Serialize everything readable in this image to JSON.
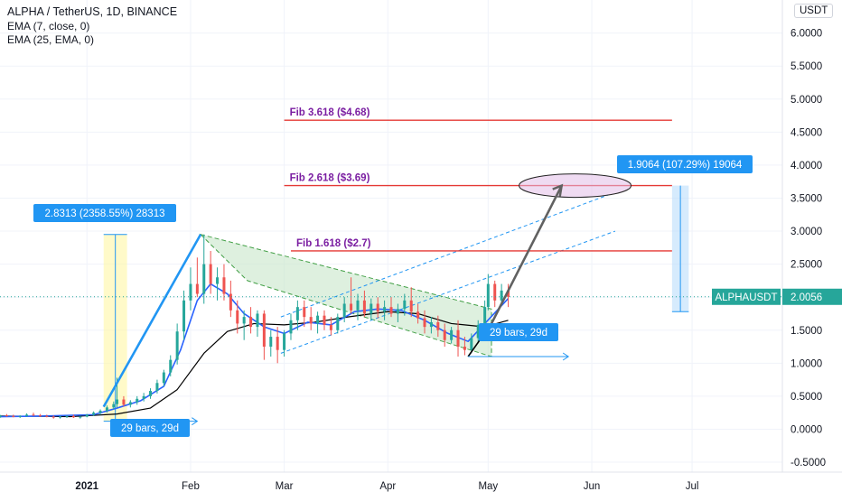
{
  "header": {
    "symbol_title": "ALPHA / TetherUS, 1D, BINANCE",
    "indicators": [
      "EMA (7, close, 0)",
      "EMA (25, EMA, 0)"
    ],
    "currency_badge": "USDT"
  },
  "colors": {
    "up": "#26a69a",
    "down": "#ef5350",
    "ema_fast": "#2962ff",
    "ema_slow": "#000000",
    "fib_line": "#e53935",
    "fib_text": "#7b1fa2",
    "label_blue": "#2196f3",
    "price_badge": "#26a69a",
    "channel_fill": "#c8e6c9",
    "projection": "#616161"
  },
  "chart_data": {
    "type": "candlestick",
    "title": "ALPHA / TetherUS, 1D, BINANCE",
    "y_ticks": [
      -0.5,
      0,
      0.5,
      1.0,
      1.5,
      2.0,
      2.5,
      3.0,
      3.5,
      4.0,
      4.5,
      5.0,
      5.5,
      6.0
    ],
    "y_tick_labels": [
      "-0.5000",
      "0.0000",
      "0.5000",
      "1.0000",
      "1.5000",
      "2.0000",
      "2.5000",
      "3.0000",
      "3.5000",
      "4.0000",
      "4.5000",
      "5.0000",
      "5.5000",
      "6.0000"
    ],
    "ylim": [
      -0.65,
      6.2
    ],
    "x_ticks": [
      "2021-01-01",
      "2021-02-01",
      "2021-03-01",
      "2021-04-01",
      "2021-05-01",
      "2021-06-01",
      "2021-07-01"
    ],
    "x_tick_labels": [
      "2021",
      "Feb",
      "Mar",
      "Apr",
      "May",
      "Jun",
      "Jul"
    ],
    "xlim": [
      "2020-12-06",
      "2021-07-28"
    ],
    "last_price": {
      "symbol": "ALPHAUSDT",
      "value": "2.0056",
      "y": 2.0056
    },
    "fib_levels": [
      {
        "label": "Fib 1.618 ($2.7)",
        "y": 2.7,
        "start": "2021-03-03",
        "end": "2021-06-25"
      },
      {
        "label": "Fib 2.618 ($3.69)",
        "y": 3.69,
        "start": "2021-03-01",
        "end": "2021-06-25"
      },
      {
        "label": "Fib 3.618 ($4.68)",
        "y": 4.68,
        "start": "2021-03-01",
        "end": "2021-06-25"
      }
    ],
    "measure_labels": [
      {
        "text": "2.8313 (2358.55%) 28313"
      },
      {
        "text": "1.9064 (107.29%) 19064"
      },
      {
        "text": "29 bars, 29d"
      },
      {
        "text": "29 bars, 29d"
      }
    ],
    "anchors": {
      "start_low_date": "2021-01-06",
      "start_low": 0.12,
      "peak_date": "2021-02-04",
      "peak": 2.95,
      "target_date": "2021-05-23",
      "target": 3.69,
      "first_base_date": "2021-04-25",
      "first_base": 1.1,
      "first_top_date": "2021-05-02",
      "first_top": 1.6
    },
    "candles": [
      {
        "date": "2020-12-06",
        "open": 0.18,
        "high": 0.22,
        "low": 0.17,
        "close": 0.21
      },
      {
        "date": "2020-12-08",
        "open": 0.21,
        "high": 0.23,
        "low": 0.19,
        "close": 0.2
      },
      {
        "date": "2020-12-10",
        "open": 0.2,
        "high": 0.22,
        "low": 0.18,
        "close": 0.19
      },
      {
        "date": "2020-12-12",
        "open": 0.19,
        "high": 0.21,
        "low": 0.17,
        "close": 0.2
      },
      {
        "date": "2020-12-14",
        "open": 0.2,
        "high": 0.24,
        "low": 0.19,
        "close": 0.22
      },
      {
        "date": "2020-12-16",
        "open": 0.22,
        "high": 0.25,
        "low": 0.2,
        "close": 0.21
      },
      {
        "date": "2020-12-18",
        "open": 0.21,
        "high": 0.23,
        "low": 0.19,
        "close": 0.2
      },
      {
        "date": "2020-12-20",
        "open": 0.2,
        "high": 0.22,
        "low": 0.18,
        "close": 0.19
      },
      {
        "date": "2020-12-22",
        "open": 0.19,
        "high": 0.21,
        "low": 0.16,
        "close": 0.18
      },
      {
        "date": "2020-12-24",
        "open": 0.18,
        "high": 0.2,
        "low": 0.16,
        "close": 0.19
      },
      {
        "date": "2020-12-26",
        "open": 0.19,
        "high": 0.21,
        "low": 0.17,
        "close": 0.2
      },
      {
        "date": "2020-12-28",
        "open": 0.2,
        "high": 0.22,
        "low": 0.17,
        "close": 0.18
      },
      {
        "date": "2020-12-30",
        "open": 0.18,
        "high": 0.2,
        "low": 0.16,
        "close": 0.19
      },
      {
        "date": "2021-01-01",
        "open": 0.19,
        "high": 0.23,
        "low": 0.18,
        "close": 0.22
      },
      {
        "date": "2021-01-03",
        "open": 0.22,
        "high": 0.27,
        "low": 0.2,
        "close": 0.25
      },
      {
        "date": "2021-01-05",
        "open": 0.25,
        "high": 0.3,
        "low": 0.22,
        "close": 0.28
      },
      {
        "date": "2021-01-07",
        "open": 0.28,
        "high": 0.36,
        "low": 0.25,
        "close": 0.33
      },
      {
        "date": "2021-01-09",
        "open": 0.33,
        "high": 0.42,
        "low": 0.3,
        "close": 0.38
      },
      {
        "date": "2021-01-10",
        "open": 0.38,
        "high": 0.78,
        "low": 0.33,
        "close": 0.45
      },
      {
        "date": "2021-01-12",
        "open": 0.45,
        "high": 0.5,
        "low": 0.34,
        "close": 0.37
      },
      {
        "date": "2021-01-14",
        "open": 0.37,
        "high": 0.44,
        "low": 0.33,
        "close": 0.41
      },
      {
        "date": "2021-01-16",
        "open": 0.41,
        "high": 0.5,
        "low": 0.37,
        "close": 0.46
      },
      {
        "date": "2021-01-18",
        "open": 0.46,
        "high": 0.55,
        "low": 0.42,
        "close": 0.5
      },
      {
        "date": "2021-01-20",
        "open": 0.5,
        "high": 0.62,
        "low": 0.46,
        "close": 0.58
      },
      {
        "date": "2021-01-22",
        "open": 0.58,
        "high": 0.75,
        "low": 0.54,
        "close": 0.7
      },
      {
        "date": "2021-01-24",
        "open": 0.7,
        "high": 0.9,
        "low": 0.65,
        "close": 0.86
      },
      {
        "date": "2021-01-26",
        "open": 0.86,
        "high": 1.12,
        "low": 0.8,
        "close": 1.05
      },
      {
        "date": "2021-01-28",
        "open": 1.05,
        "high": 1.6,
        "low": 0.98,
        "close": 1.48
      },
      {
        "date": "2021-01-30",
        "open": 1.48,
        "high": 2.1,
        "low": 1.35,
        "close": 1.95
      },
      {
        "date": "2021-02-01",
        "open": 1.95,
        "high": 2.45,
        "low": 1.8,
        "close": 2.2
      },
      {
        "date": "2021-02-03",
        "open": 2.2,
        "high": 2.6,
        "low": 2.0,
        "close": 2.05
      },
      {
        "date": "2021-02-05",
        "open": 2.05,
        "high": 2.95,
        "low": 1.9,
        "close": 2.5
      },
      {
        "date": "2021-02-07",
        "open": 2.5,
        "high": 2.7,
        "low": 2.05,
        "close": 2.2
      },
      {
        "date": "2021-02-09",
        "open": 2.2,
        "high": 2.45,
        "low": 1.95,
        "close": 2.3
      },
      {
        "date": "2021-02-11",
        "open": 2.3,
        "high": 2.5,
        "low": 1.95,
        "close": 2.05
      },
      {
        "date": "2021-02-13",
        "open": 2.05,
        "high": 2.25,
        "low": 1.7,
        "close": 1.8
      },
      {
        "date": "2021-02-15",
        "open": 1.8,
        "high": 1.95,
        "low": 1.45,
        "close": 1.6
      },
      {
        "date": "2021-02-17",
        "open": 1.6,
        "high": 1.8,
        "low": 1.35,
        "close": 1.7
      },
      {
        "date": "2021-02-19",
        "open": 1.7,
        "high": 1.85,
        "low": 1.45,
        "close": 1.55
      },
      {
        "date": "2021-02-21",
        "open": 1.55,
        "high": 1.8,
        "low": 1.4,
        "close": 1.75
      },
      {
        "date": "2021-02-23",
        "open": 1.75,
        "high": 1.8,
        "low": 1.05,
        "close": 1.25
      },
      {
        "date": "2021-02-25",
        "open": 1.25,
        "high": 1.5,
        "low": 1.1,
        "close": 1.4
      },
      {
        "date": "2021-02-27",
        "open": 1.4,
        "high": 1.55,
        "low": 1.0,
        "close": 1.2
      },
      {
        "date": "2021-03-01",
        "open": 1.2,
        "high": 1.5,
        "low": 1.1,
        "close": 1.45
      },
      {
        "date": "2021-03-03",
        "open": 1.45,
        "high": 1.75,
        "low": 1.35,
        "close": 1.65
      },
      {
        "date": "2021-03-05",
        "open": 1.65,
        "high": 1.95,
        "low": 1.5,
        "close": 1.85
      },
      {
        "date": "2021-03-07",
        "open": 1.85,
        "high": 1.95,
        "low": 1.55,
        "close": 1.7
      },
      {
        "date": "2021-03-09",
        "open": 1.7,
        "high": 1.85,
        "low": 1.5,
        "close": 1.6
      },
      {
        "date": "2021-03-11",
        "open": 1.6,
        "high": 1.78,
        "low": 1.45,
        "close": 1.72
      },
      {
        "date": "2021-03-13",
        "open": 1.72,
        "high": 1.8,
        "low": 1.5,
        "close": 1.58
      },
      {
        "date": "2021-03-15",
        "open": 1.58,
        "high": 1.7,
        "low": 1.42,
        "close": 1.5
      },
      {
        "date": "2021-03-17",
        "open": 1.5,
        "high": 1.75,
        "low": 1.45,
        "close": 1.7
      },
      {
        "date": "2021-03-19",
        "open": 1.7,
        "high": 2.0,
        "low": 1.62,
        "close": 1.9
      },
      {
        "date": "2021-03-21",
        "open": 1.9,
        "high": 2.3,
        "low": 1.75,
        "close": 1.8
      },
      {
        "date": "2021-03-23",
        "open": 1.8,
        "high": 2.05,
        "low": 1.65,
        "close": 1.95
      },
      {
        "date": "2021-03-25",
        "open": 1.95,
        "high": 2.1,
        "low": 1.7,
        "close": 1.75
      },
      {
        "date": "2021-03-27",
        "open": 1.75,
        "high": 1.98,
        "low": 1.65,
        "close": 1.9
      },
      {
        "date": "2021-03-29",
        "open": 1.9,
        "high": 2.0,
        "low": 1.68,
        "close": 1.78
      },
      {
        "date": "2021-03-31",
        "open": 1.78,
        "high": 1.95,
        "low": 1.65,
        "close": 1.85
      },
      {
        "date": "2021-04-02",
        "open": 1.85,
        "high": 2.0,
        "low": 1.7,
        "close": 1.75
      },
      {
        "date": "2021-04-04",
        "open": 1.75,
        "high": 1.9,
        "low": 1.62,
        "close": 1.82
      },
      {
        "date": "2021-04-06",
        "open": 1.82,
        "high": 2.05,
        "low": 1.72,
        "close": 1.95
      },
      {
        "date": "2021-04-08",
        "open": 1.95,
        "high": 2.15,
        "low": 1.7,
        "close": 1.78
      },
      {
        "date": "2021-04-10",
        "open": 1.78,
        "high": 1.9,
        "low": 1.6,
        "close": 1.68
      },
      {
        "date": "2021-04-12",
        "open": 1.68,
        "high": 1.8,
        "low": 1.45,
        "close": 1.55
      },
      {
        "date": "2021-04-14",
        "open": 1.55,
        "high": 1.7,
        "low": 1.45,
        "close": 1.62
      },
      {
        "date": "2021-04-16",
        "open": 1.62,
        "high": 1.72,
        "low": 1.4,
        "close": 1.5
      },
      {
        "date": "2021-04-18",
        "open": 1.5,
        "high": 1.6,
        "low": 1.25,
        "close": 1.35
      },
      {
        "date": "2021-04-20",
        "open": 1.35,
        "high": 1.55,
        "low": 1.3,
        "close": 1.5
      },
      {
        "date": "2021-04-22",
        "open": 1.5,
        "high": 1.65,
        "low": 1.1,
        "close": 1.25
      },
      {
        "date": "2021-04-24",
        "open": 1.25,
        "high": 1.4,
        "low": 1.12,
        "close": 1.2
      },
      {
        "date": "2021-04-26",
        "open": 1.2,
        "high": 1.45,
        "low": 1.15,
        "close": 1.38
      },
      {
        "date": "2021-04-28",
        "open": 1.38,
        "high": 1.65,
        "low": 1.3,
        "close": 1.58
      },
      {
        "date": "2021-04-30",
        "open": 1.58,
        "high": 1.95,
        "low": 1.5,
        "close": 1.85
      },
      {
        "date": "2021-05-01",
        "open": 1.85,
        "high": 2.35,
        "low": 1.8,
        "close": 2.2
      },
      {
        "date": "2021-05-03",
        "open": 2.2,
        "high": 2.25,
        "low": 1.85,
        "close": 1.95
      },
      {
        "date": "2021-05-05",
        "open": 1.95,
        "high": 2.2,
        "low": 1.88,
        "close": 2.1
      },
      {
        "date": "2021-05-07",
        "open": 2.1,
        "high": 2.2,
        "low": 1.85,
        "close": 2.0056
      }
    ],
    "ema_fast": [
      [
        "2020-12-06",
        0.19
      ],
      [
        "2020-12-20",
        0.2
      ],
      [
        "2021-01-03",
        0.22
      ],
      [
        "2021-01-10",
        0.32
      ],
      [
        "2021-01-17",
        0.43
      ],
      [
        "2021-01-24",
        0.65
      ],
      [
        "2021-01-29",
        1.2
      ],
      [
        "2021-02-03",
        1.95
      ],
      [
        "2021-02-07",
        2.2
      ],
      [
        "2021-02-12",
        2.05
      ],
      [
        "2021-02-17",
        1.75
      ],
      [
        "2021-02-23",
        1.55
      ],
      [
        "2021-03-01",
        1.45
      ],
      [
        "2021-03-08",
        1.62
      ],
      [
        "2021-03-15",
        1.58
      ],
      [
        "2021-03-22",
        1.78
      ],
      [
        "2021-03-29",
        1.82
      ],
      [
        "2021-04-05",
        1.8
      ],
      [
        "2021-04-12",
        1.65
      ],
      [
        "2021-04-19",
        1.45
      ],
      [
        "2021-04-25",
        1.33
      ],
      [
        "2021-04-30",
        1.6
      ],
      [
        "2021-05-07",
        1.98
      ]
    ],
    "ema_slow": [
      [
        "2020-12-06",
        0.2
      ],
      [
        "2020-12-27",
        0.19
      ],
      [
        "2021-01-10",
        0.23
      ],
      [
        "2021-01-20",
        0.32
      ],
      [
        "2021-01-28",
        0.6
      ],
      [
        "2021-02-05",
        1.15
      ],
      [
        "2021-02-12",
        1.48
      ],
      [
        "2021-02-20",
        1.6
      ],
      [
        "2021-03-01",
        1.58
      ],
      [
        "2021-03-10",
        1.62
      ],
      [
        "2021-03-20",
        1.7
      ],
      [
        "2021-04-01",
        1.78
      ],
      [
        "2021-04-10",
        1.75
      ],
      [
        "2021-04-20",
        1.6
      ],
      [
        "2021-04-30",
        1.55
      ],
      [
        "2021-05-07",
        1.65
      ]
    ]
  }
}
